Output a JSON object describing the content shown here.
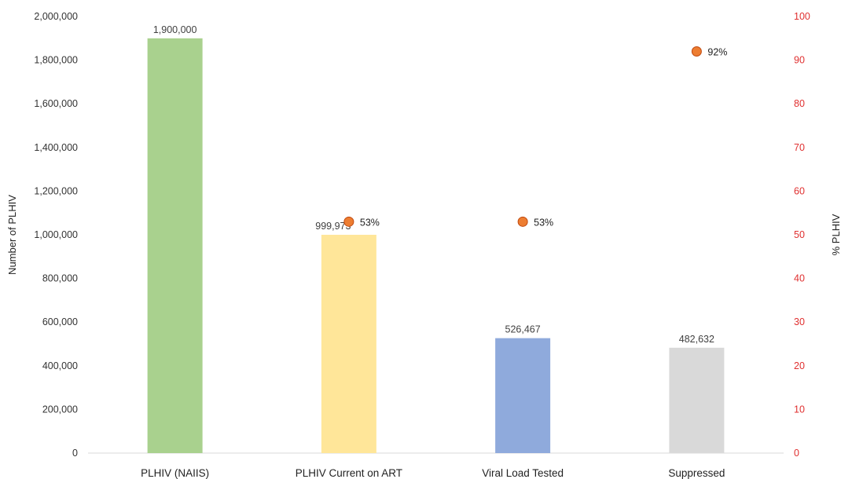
{
  "chart_data": {
    "type": "bar",
    "categories": [
      "PLHIV (NAIIS)",
      "PLHIV Current on ART",
      "Viral Load Tested",
      "Suppressed"
    ],
    "series": [
      {
        "values": [
          1900000,
          999973,
          526467,
          482632
        ],
        "value_labels": [
          "1,900,000",
          "999,973",
          "526,467",
          "482,632"
        ],
        "colors": [
          "#a9d18e",
          "#ffe699",
          "#8faadc",
          "#d9d9d9"
        ],
        "axis": "left"
      },
      {
        "type": "scatter",
        "values": [
          null,
          53,
          53,
          92
        ],
        "value_labels": [
          "",
          "53%",
          "53%",
          "92%"
        ],
        "color": "#ed7d31",
        "axis": "right"
      }
    ],
    "ylabel": "Number of PLHIV",
    "y2label": "% PLHIV",
    "ylim": [
      0,
      2000000
    ],
    "y2lim": [
      0,
      100
    ],
    "yticks": [
      "0",
      "200,000",
      "400,000",
      "600,000",
      "800,000",
      "1,000,000",
      "1,200,000",
      "1,400,000",
      "1,600,000",
      "1,800,000",
      "2,000,000"
    ],
    "y2ticks": [
      "0",
      "10",
      "20",
      "30",
      "40",
      "50",
      "60",
      "70",
      "80",
      "90",
      "100"
    ],
    "y2_tick_color": "#e03030",
    "grid": false,
    "legend": "none"
  }
}
